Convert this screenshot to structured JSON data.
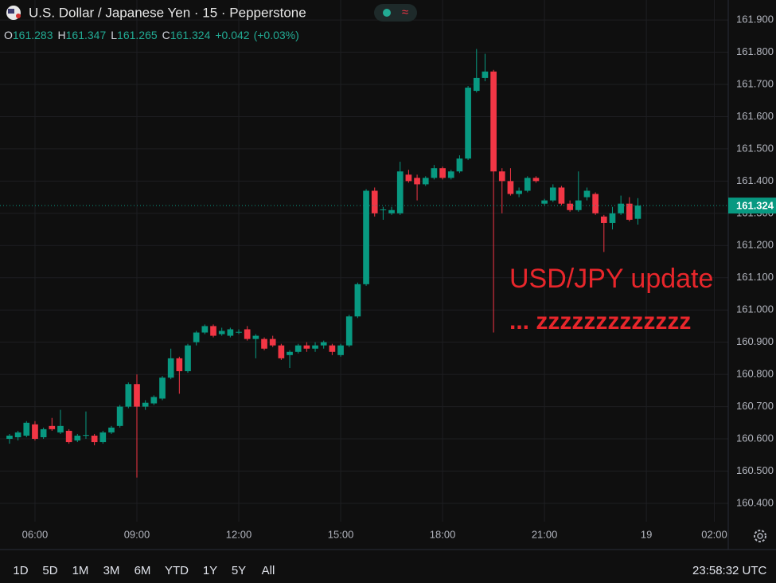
{
  "header": {
    "title": "U.S. Dollar / Japanese Yen · 15 · Pepperstone",
    "ohlc": [
      {
        "key": "O",
        "value": "161.283"
      },
      {
        "key": "H",
        "value": "161.347"
      },
      {
        "key": "L",
        "value": "161.265"
      },
      {
        "key": "C",
        "value": "161.324"
      }
    ],
    "change": "+0.042",
    "change_pct": "(+0.03%)"
  },
  "chart_data": {
    "type": "candlestick",
    "up_color": "#089981",
    "down_color": "#f23645",
    "grid": true,
    "annotations": [
      "USD/JPY update",
      "... zzzzzzzzzzzzz"
    ],
    "xlim": [
      4.97,
      26.41
    ],
    "xticks": [
      {
        "value": 6,
        "label": "06:00"
      },
      {
        "value": 9,
        "label": "09:00"
      },
      {
        "value": 12,
        "label": "12:00"
      },
      {
        "value": 15,
        "label": "15:00"
      },
      {
        "value": 18,
        "label": "18:00"
      },
      {
        "value": 21,
        "label": "21:00"
      },
      {
        "value": 24,
        "label": "19"
      },
      {
        "value": 26,
        "label": "02:00"
      }
    ],
    "ylim": [
      160.343,
      161.962
    ],
    "yticks": [
      {
        "value": 160.4,
        "label": "160.400"
      },
      {
        "value": 160.5,
        "label": "160.500"
      },
      {
        "value": 160.6,
        "label": "160.600"
      },
      {
        "value": 160.7,
        "label": "160.700"
      },
      {
        "value": 160.8,
        "label": "160.800"
      },
      {
        "value": 160.9,
        "label": "160.900"
      },
      {
        "value": 161.0,
        "label": "161.000"
      },
      {
        "value": 161.1,
        "label": "161.100"
      },
      {
        "value": 161.2,
        "label": "161.200"
      },
      {
        "value": 161.3,
        "label": "161.300"
      },
      {
        "value": 161.4,
        "label": "161.400"
      },
      {
        "value": 161.5,
        "label": "161.500"
      },
      {
        "value": 161.6,
        "label": "161.600"
      },
      {
        "value": 161.7,
        "label": "161.700"
      },
      {
        "value": 161.8,
        "label": "161.800"
      },
      {
        "value": 161.9,
        "label": "161.900"
      }
    ],
    "last_price": 161.324,
    "x": [
      5.25,
      5.5,
      5.75,
      6,
      6.25,
      6.5,
      6.75,
      7,
      7.25,
      7.5,
      7.75,
      8,
      8.25,
      8.5,
      8.75,
      9,
      9.25,
      9.5,
      9.75,
      10,
      10.25,
      10.5,
      10.75,
      11,
      11.25,
      11.5,
      11.75,
      12,
      12.25,
      12.5,
      12.75,
      13,
      13.25,
      13.5,
      13.75,
      14,
      14.25,
      14.5,
      14.75,
      15,
      15.25,
      15.5,
      15.75,
      16,
      16.25,
      16.5,
      16.75,
      17,
      17.25,
      17.5,
      17.75,
      18,
      18.25,
      18.5,
      18.75,
      19,
      19.25,
      19.5,
      19.75,
      20,
      20.25,
      20.5,
      20.75,
      21,
      21.25,
      21.5,
      21.75,
      22,
      22.25,
      22.5,
      22.75,
      23,
      23.25,
      23.5,
      23.75
    ],
    "open": [
      160.6,
      160.605,
      160.61,
      160.645,
      160.605,
      160.64,
      160.62,
      160.625,
      160.595,
      160.61,
      160.61,
      160.59,
      160.62,
      160.64,
      160.7,
      160.77,
      160.7,
      160.71,
      160.725,
      160.79,
      160.85,
      160.81,
      160.9,
      160.93,
      160.95,
      160.925,
      160.92,
      160.93,
      160.94,
      160.91,
      160.91,
      160.91,
      160.89,
      160.86,
      160.87,
      160.89,
      160.88,
      160.89,
      160.89,
      160.86,
      160.89,
      160.98,
      161.08,
      161.37,
      161.31,
      161.3,
      161.3,
      161.42,
      161.41,
      161.39,
      161.41,
      161.44,
      161.41,
      161.43,
      161.47,
      161.68,
      161.72,
      161.74,
      161.43,
      161.4,
      161.36,
      161.37,
      161.41,
      161.33,
      161.34,
      161.38,
      161.33,
      161.31,
      161.35,
      161.36,
      161.29,
      161.27,
      161.3,
      161.33,
      161.283
    ],
    "high": [
      160.615,
      160.625,
      160.655,
      160.655,
      160.635,
      160.665,
      160.69,
      160.63,
      160.615,
      160.685,
      160.615,
      160.625,
      160.64,
      160.705,
      160.775,
      160.8,
      160.72,
      160.735,
      160.795,
      160.88,
      160.855,
      160.895,
      160.935,
      160.955,
      160.955,
      160.945,
      160.945,
      160.94,
      160.95,
      160.925,
      160.915,
      160.92,
      160.895,
      160.875,
      160.895,
      160.9,
      160.9,
      160.905,
      160.895,
      160.895,
      160.985,
      161.085,
      161.375,
      161.38,
      161.32,
      161.32,
      161.46,
      161.435,
      161.42,
      161.415,
      161.45,
      161.445,
      161.435,
      161.48,
      161.695,
      161.81,
      161.795,
      161.745,
      161.44,
      161.44,
      161.38,
      161.415,
      161.415,
      161.345,
      161.39,
      161.385,
      161.34,
      161.43,
      161.38,
      161.365,
      161.295,
      161.32,
      161.355,
      161.35,
      161.347
    ],
    "low": [
      160.585,
      160.595,
      160.605,
      160.595,
      160.6,
      160.625,
      160.615,
      160.585,
      160.59,
      160.6,
      160.58,
      160.585,
      160.615,
      160.635,
      160.695,
      160.48,
      160.69,
      160.705,
      160.72,
      160.785,
      160.74,
      160.805,
      160.89,
      160.925,
      160.915,
      160.92,
      160.915,
      160.925,
      160.905,
      160.85,
      160.875,
      160.885,
      160.845,
      160.82,
      160.865,
      160.87,
      160.87,
      160.88,
      160.86,
      160.855,
      160.885,
      160.975,
      161.075,
      161.29,
      161.28,
      161.295,
      161.295,
      161.395,
      161.34,
      161.385,
      161.405,
      161.405,
      161.405,
      161.425,
      161.465,
      161.675,
      161.71,
      160.93,
      161.3,
      161.355,
      161.35,
      161.365,
      161.395,
      161.325,
      161.335,
      161.325,
      161.305,
      161.305,
      161.34,
      161.295,
      161.18,
      161.25,
      161.295,
      161.275,
      161.265
    ],
    "close": [
      160.61,
      160.62,
      160.65,
      160.6,
      160.63,
      160.63,
      160.64,
      160.59,
      160.61,
      160.612,
      160.59,
      160.62,
      160.635,
      160.7,
      160.77,
      160.7,
      160.712,
      160.73,
      160.79,
      160.85,
      160.81,
      160.89,
      160.93,
      160.95,
      160.92,
      160.935,
      160.94,
      160.932,
      160.91,
      160.92,
      160.88,
      160.89,
      160.85,
      160.87,
      160.89,
      160.88,
      160.89,
      160.9,
      160.87,
      160.89,
      160.98,
      161.08,
      161.37,
      161.3,
      161.312,
      161.31,
      161.43,
      161.4,
      161.39,
      161.41,
      161.44,
      161.41,
      161.43,
      161.47,
      161.69,
      161.72,
      161.74,
      161.43,
      161.4,
      161.36,
      161.37,
      161.41,
      161.4,
      161.34,
      161.38,
      161.33,
      161.31,
      161.34,
      161.37,
      161.3,
      161.27,
      161.3,
      161.33,
      161.28,
      161.324
    ]
  },
  "toolbar": {
    "ranges": [
      "1D",
      "5D",
      "1M",
      "3M",
      "6M",
      "YTD",
      "1Y",
      "5Y",
      "All"
    ],
    "clock": "23:58:32 UTC"
  }
}
